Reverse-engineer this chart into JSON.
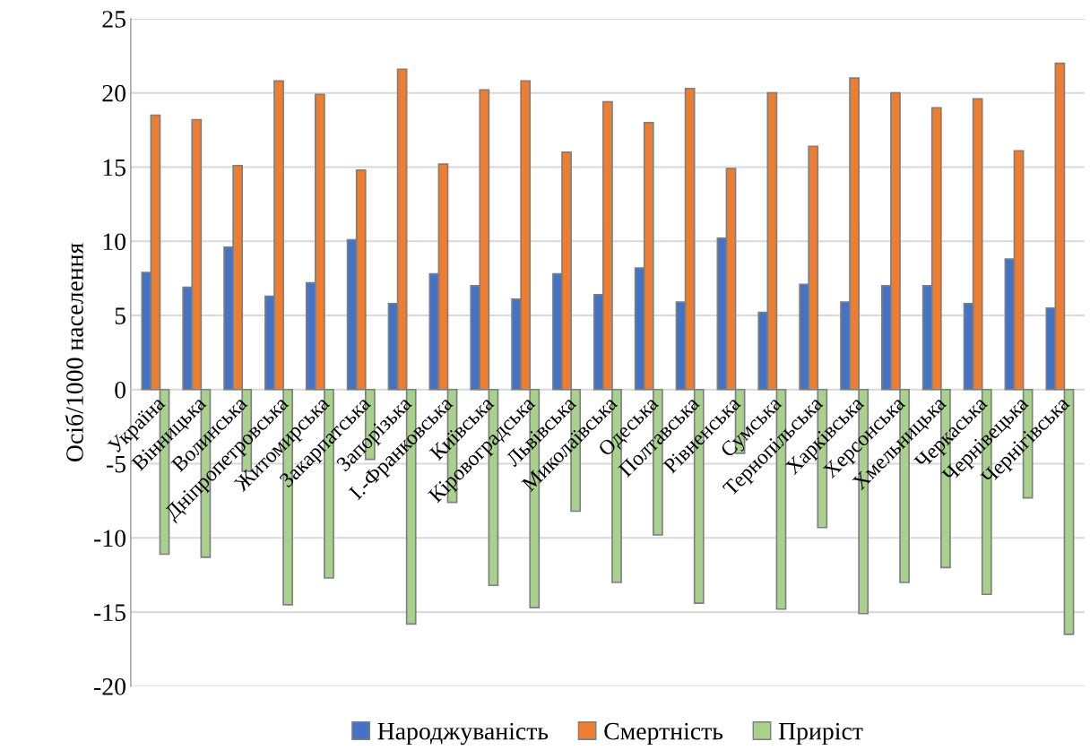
{
  "chart_data": {
    "type": "bar",
    "ylabel": "Осіб/1000 населення",
    "categories": [
      "Україна",
      "Вінницька",
      "Волинська",
      "Дніпропетровська",
      "Житомирська",
      "Закарпатська",
      "Запорізька",
      "І.-Франковська",
      "Київська",
      "Кіровоградська",
      "Львівська",
      "Миколаївська",
      "Одеська",
      "Полтавська",
      "Рівненська",
      "Сумська",
      "Тернопільська",
      "Харківська",
      "Херсонська",
      "Хмельницька",
      "Черкаська",
      "Чернівецька",
      "Чернігівська"
    ],
    "series": [
      {
        "name": "Народжуваність",
        "color": "#4472c4",
        "values": [
          7.9,
          6.9,
          9.6,
          6.3,
          7.2,
          10.1,
          5.8,
          7.8,
          7.0,
          6.1,
          7.8,
          6.4,
          8.2,
          5.9,
          10.2,
          5.2,
          7.1,
          5.9,
          7.0,
          7.0,
          5.8,
          8.8,
          5.5
        ]
      },
      {
        "name": "Смертність",
        "color": "#ed7d31",
        "values": [
          18.5,
          18.2,
          15.1,
          20.8,
          19.9,
          14.8,
          21.6,
          15.2,
          20.2,
          20.8,
          16.0,
          19.4,
          18.0,
          20.3,
          14.9,
          20.0,
          16.4,
          21.0,
          20.0,
          19.0,
          19.6,
          16.1,
          22.0
        ]
      },
      {
        "name": "Приріст",
        "color": "#a9d18e",
        "values": [
          -11.1,
          -11.3,
          -5.5,
          -14.5,
          -12.7,
          -4.7,
          -15.8,
          -7.6,
          -13.2,
          -14.7,
          -8.2,
          -13.0,
          -9.8,
          -14.4,
          -4.3,
          -14.8,
          -9.3,
          -15.1,
          -13.0,
          -12.0,
          -13.8,
          -7.3,
          -16.5
        ]
      }
    ],
    "ylim": [
      -20,
      25
    ],
    "yticks": [
      -20,
      -15,
      -10,
      -5,
      0,
      5,
      10,
      15,
      20,
      25
    ],
    "grid": "y",
    "legend": "bottom"
  }
}
